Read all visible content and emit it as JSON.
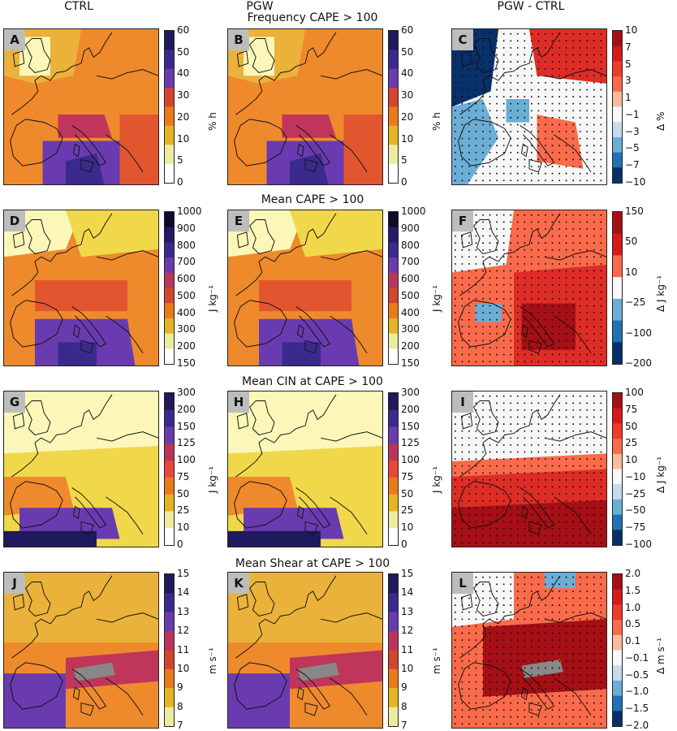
{
  "columns": [
    "CTRL",
    "PGW",
    "PGW - CTRL"
  ],
  "rows": [
    {
      "title": "Frequency CAPE > 100",
      "panels": [
        {
          "letter": "A",
          "cbar": {
            "ticks": [
              "60",
              "50",
              "40",
              "30",
              "20",
              "10",
              "5",
              "0"
            ],
            "unit": "% h",
            "colors": [
              "#1f1a5b",
              "#3b2a8e",
              "#6a3bb0",
              "#d5442e",
              "#ea7b1d",
              "#e3b525",
              "#edeb9e",
              "#ffffff"
            ]
          }
        },
        {
          "letter": "B",
          "cbar": {
            "ticks": [
              "60",
              "50",
              "40",
              "30",
              "20",
              "10",
              "5",
              "0"
            ],
            "unit": "% h",
            "colors": [
              "#1f1a5b",
              "#3b2a8e",
              "#6a3bb0",
              "#d5442e",
              "#ea7b1d",
              "#e3b525",
              "#edeb9e",
              "#ffffff"
            ]
          }
        },
        {
          "letter": "C",
          "cbar": {
            "ticks": [
              "10",
              "7",
              "5",
              "3",
              "1",
              "−1",
              "−3",
              "−5",
              "−7",
              "−10"
            ],
            "unit": "Δ %",
            "colors": [
              "#a50f15",
              "#d7191c",
              "#ef3b2c",
              "#fb6a4a",
              "#fcbba1",
              "#f7f7f7",
              "#c6dbef",
              "#6baed6",
              "#2171b5",
              "#08306b"
            ]
          }
        }
      ]
    },
    {
      "title": "Mean CAPE > 100",
      "panels": [
        {
          "letter": "D",
          "cbar": {
            "ticks": [
              "1000",
              "900",
              "800",
              "700",
              "600",
              "500",
              "400",
              "300",
              "200",
              "150"
            ],
            "unit": "J kg⁻¹",
            "colors": [
              "#0e0b2c",
              "#231b66",
              "#3b2a8e",
              "#6a3bb0",
              "#b8365c",
              "#d5442e",
              "#ea7b1d",
              "#e3b525",
              "#edeb9e",
              "#ffffff"
            ]
          }
        },
        {
          "letter": "E",
          "cbar": {
            "ticks": [
              "1000",
              "900",
              "800",
              "700",
              "600",
              "500",
              "400",
              "300",
              "200",
              "150"
            ],
            "unit": "J kg⁻¹",
            "colors": [
              "#0e0b2c",
              "#231b66",
              "#3b2a8e",
              "#6a3bb0",
              "#b8365c",
              "#d5442e",
              "#ea7b1d",
              "#e3b525",
              "#edeb9e",
              "#ffffff"
            ]
          }
        },
        {
          "letter": "F",
          "cbar": {
            "ticks": [
              "150",
              "50",
              "10",
              "−25",
              "−100",
              "−200"
            ],
            "unit": "Δ J kg⁻¹",
            "colors": [
              "#a50f15",
              "#d7191c",
              "#fb6a4a",
              "#f7f7f7",
              "#6baed6",
              "#2171b5",
              "#08306b"
            ]
          }
        }
      ]
    },
    {
      "title": "Mean CIN at CAPE > 100",
      "panels": [
        {
          "letter": "G",
          "cbar": {
            "ticks": [
              "300",
              "200",
              "150",
              "125",
              "100",
              "75",
              "50",
              "25",
              "10",
              "0"
            ],
            "unit": "J kg⁻¹",
            "colors": [
              "#1f1a5b",
              "#3b2a8e",
              "#6a3bb0",
              "#b8365c",
              "#e8473a",
              "#ea7b1d",
              "#e3b525",
              "#edeb9e",
              "#ffffff"
            ]
          }
        },
        {
          "letter": "H",
          "cbar": {
            "ticks": [
              "300",
              "200",
              "150",
              "125",
              "100",
              "75",
              "50",
              "25",
              "10",
              "0"
            ],
            "unit": "J kg⁻¹",
            "colors": [
              "#1f1a5b",
              "#3b2a8e",
              "#6a3bb0",
              "#b8365c",
              "#e8473a",
              "#ea7b1d",
              "#e3b525",
              "#edeb9e",
              "#ffffff"
            ]
          }
        },
        {
          "letter": "I",
          "cbar": {
            "ticks": [
              "100",
              "75",
              "50",
              "25",
              "10",
              "−10",
              "−25",
              "−50",
              "−75",
              "−100"
            ],
            "unit": "Δ J kg⁻¹",
            "colors": [
              "#a50f15",
              "#d7191c",
              "#ef3b2c",
              "#fb6a4a",
              "#fcbba1",
              "#f7f7f7",
              "#c6dbef",
              "#6baed6",
              "#2171b5",
              "#08306b"
            ]
          }
        }
      ]
    },
    {
      "title": "Mean Shear at CAPE > 100",
      "panels": [
        {
          "letter": "J",
          "cbar": {
            "ticks": [
              "15",
              "14",
              "13",
              "12",
              "11",
              "10",
              "9",
              "8",
              "7"
            ],
            "unit": "m s⁻¹",
            "colors": [
              "#1f1a5b",
              "#3b2a8e",
              "#6a3bb0",
              "#b8365c",
              "#d5442e",
              "#ea7b1d",
              "#e3b525",
              "#edeb9e"
            ]
          }
        },
        {
          "letter": "K",
          "cbar": {
            "ticks": [
              "15",
              "14",
              "13",
              "12",
              "11",
              "10",
              "9",
              "8",
              "7"
            ],
            "unit": "m s⁻¹",
            "colors": [
              "#1f1a5b",
              "#3b2a8e",
              "#6a3bb0",
              "#b8365c",
              "#d5442e",
              "#ea7b1d",
              "#e3b525",
              "#edeb9e"
            ]
          }
        },
        {
          "letter": "L",
          "cbar": {
            "ticks": [
              "2.0",
              "1.5",
              "1.0",
              "0.5",
              "0.1",
              "−0.1",
              "−0.5",
              "−1.0",
              "−1.5",
              "−2.0"
            ],
            "unit": "Δ m s⁻¹",
            "colors": [
              "#a50f15",
              "#d7191c",
              "#ef3b2c",
              "#fb6a4a",
              "#fcbba1",
              "#f7f7f7",
              "#c6dbef",
              "#6baed6",
              "#2171b5",
              "#08306b"
            ]
          }
        }
      ]
    }
  ],
  "chart_data": {
    "type": "heatmap",
    "columns": [
      "CTRL",
      "PGW",
      "PGW - CTRL"
    ],
    "panels": [
      {
        "letter": "A",
        "row_title": "Frequency CAPE > 100",
        "column": "CTRL",
        "unit": "% h",
        "levels": [
          0,
          5,
          10,
          20,
          30,
          40,
          50,
          60
        ]
      },
      {
        "letter": "B",
        "row_title": "Frequency CAPE > 100",
        "column": "PGW",
        "unit": "% h",
        "levels": [
          0,
          5,
          10,
          20,
          30,
          40,
          50,
          60
        ]
      },
      {
        "letter": "C",
        "row_title": "Frequency CAPE > 100",
        "column": "PGW - CTRL",
        "unit": "Δ %",
        "levels": [
          -10,
          -7,
          -5,
          -3,
          -1,
          1,
          3,
          5,
          7,
          10
        ]
      },
      {
        "letter": "D",
        "row_title": "Mean CAPE > 100",
        "column": "CTRL",
        "unit": "J kg⁻¹",
        "levels": [
          150,
          200,
          300,
          400,
          500,
          600,
          700,
          800,
          900,
          1000
        ]
      },
      {
        "letter": "E",
        "row_title": "Mean CAPE > 100",
        "column": "PGW",
        "unit": "J kg⁻¹",
        "levels": [
          150,
          200,
          300,
          400,
          500,
          600,
          700,
          800,
          900,
          1000
        ]
      },
      {
        "letter": "F",
        "row_title": "Mean CAPE > 100",
        "column": "PGW - CTRL",
        "unit": "Δ J kg⁻¹",
        "levels": [
          -200,
          -100,
          -25,
          10,
          50,
          150
        ]
      },
      {
        "letter": "G",
        "row_title": "Mean CIN at CAPE > 100",
        "column": "CTRL",
        "unit": "J kg⁻¹",
        "levels": [
          0,
          10,
          25,
          50,
          75,
          100,
          125,
          150,
          200,
          300
        ]
      },
      {
        "letter": "H",
        "row_title": "Mean CIN at CAPE > 100",
        "column": "PGW",
        "unit": "J kg⁻¹",
        "levels": [
          0,
          10,
          25,
          50,
          75,
          100,
          125,
          150,
          200,
          300
        ]
      },
      {
        "letter": "I",
        "row_title": "Mean CIN at CAPE > 100",
        "column": "PGW - CTRL",
        "unit": "Δ J kg⁻¹",
        "levels": [
          -100,
          -75,
          -50,
          -25,
          -10,
          10,
          25,
          50,
          75,
          100
        ]
      },
      {
        "letter": "J",
        "row_title": "Mean Shear at CAPE > 100",
        "column": "CTRL",
        "unit": "m s⁻¹",
        "levels": [
          7,
          8,
          9,
          10,
          11,
          12,
          13,
          14,
          15
        ]
      },
      {
        "letter": "K",
        "row_title": "Mean Shear at CAPE > 100",
        "column": "PGW",
        "unit": "m s⁻¹",
        "levels": [
          7,
          8,
          9,
          10,
          11,
          12,
          13,
          14,
          15
        ]
      },
      {
        "letter": "L",
        "row_title": "Mean Shear at CAPE > 100",
        "column": "PGW - CTRL",
        "unit": "Δ m s⁻¹",
        "levels": [
          -2.0,
          -1.5,
          -1.0,
          -0.5,
          -0.1,
          0.1,
          0.5,
          1.0,
          1.5,
          2.0
        ]
      }
    ]
  }
}
